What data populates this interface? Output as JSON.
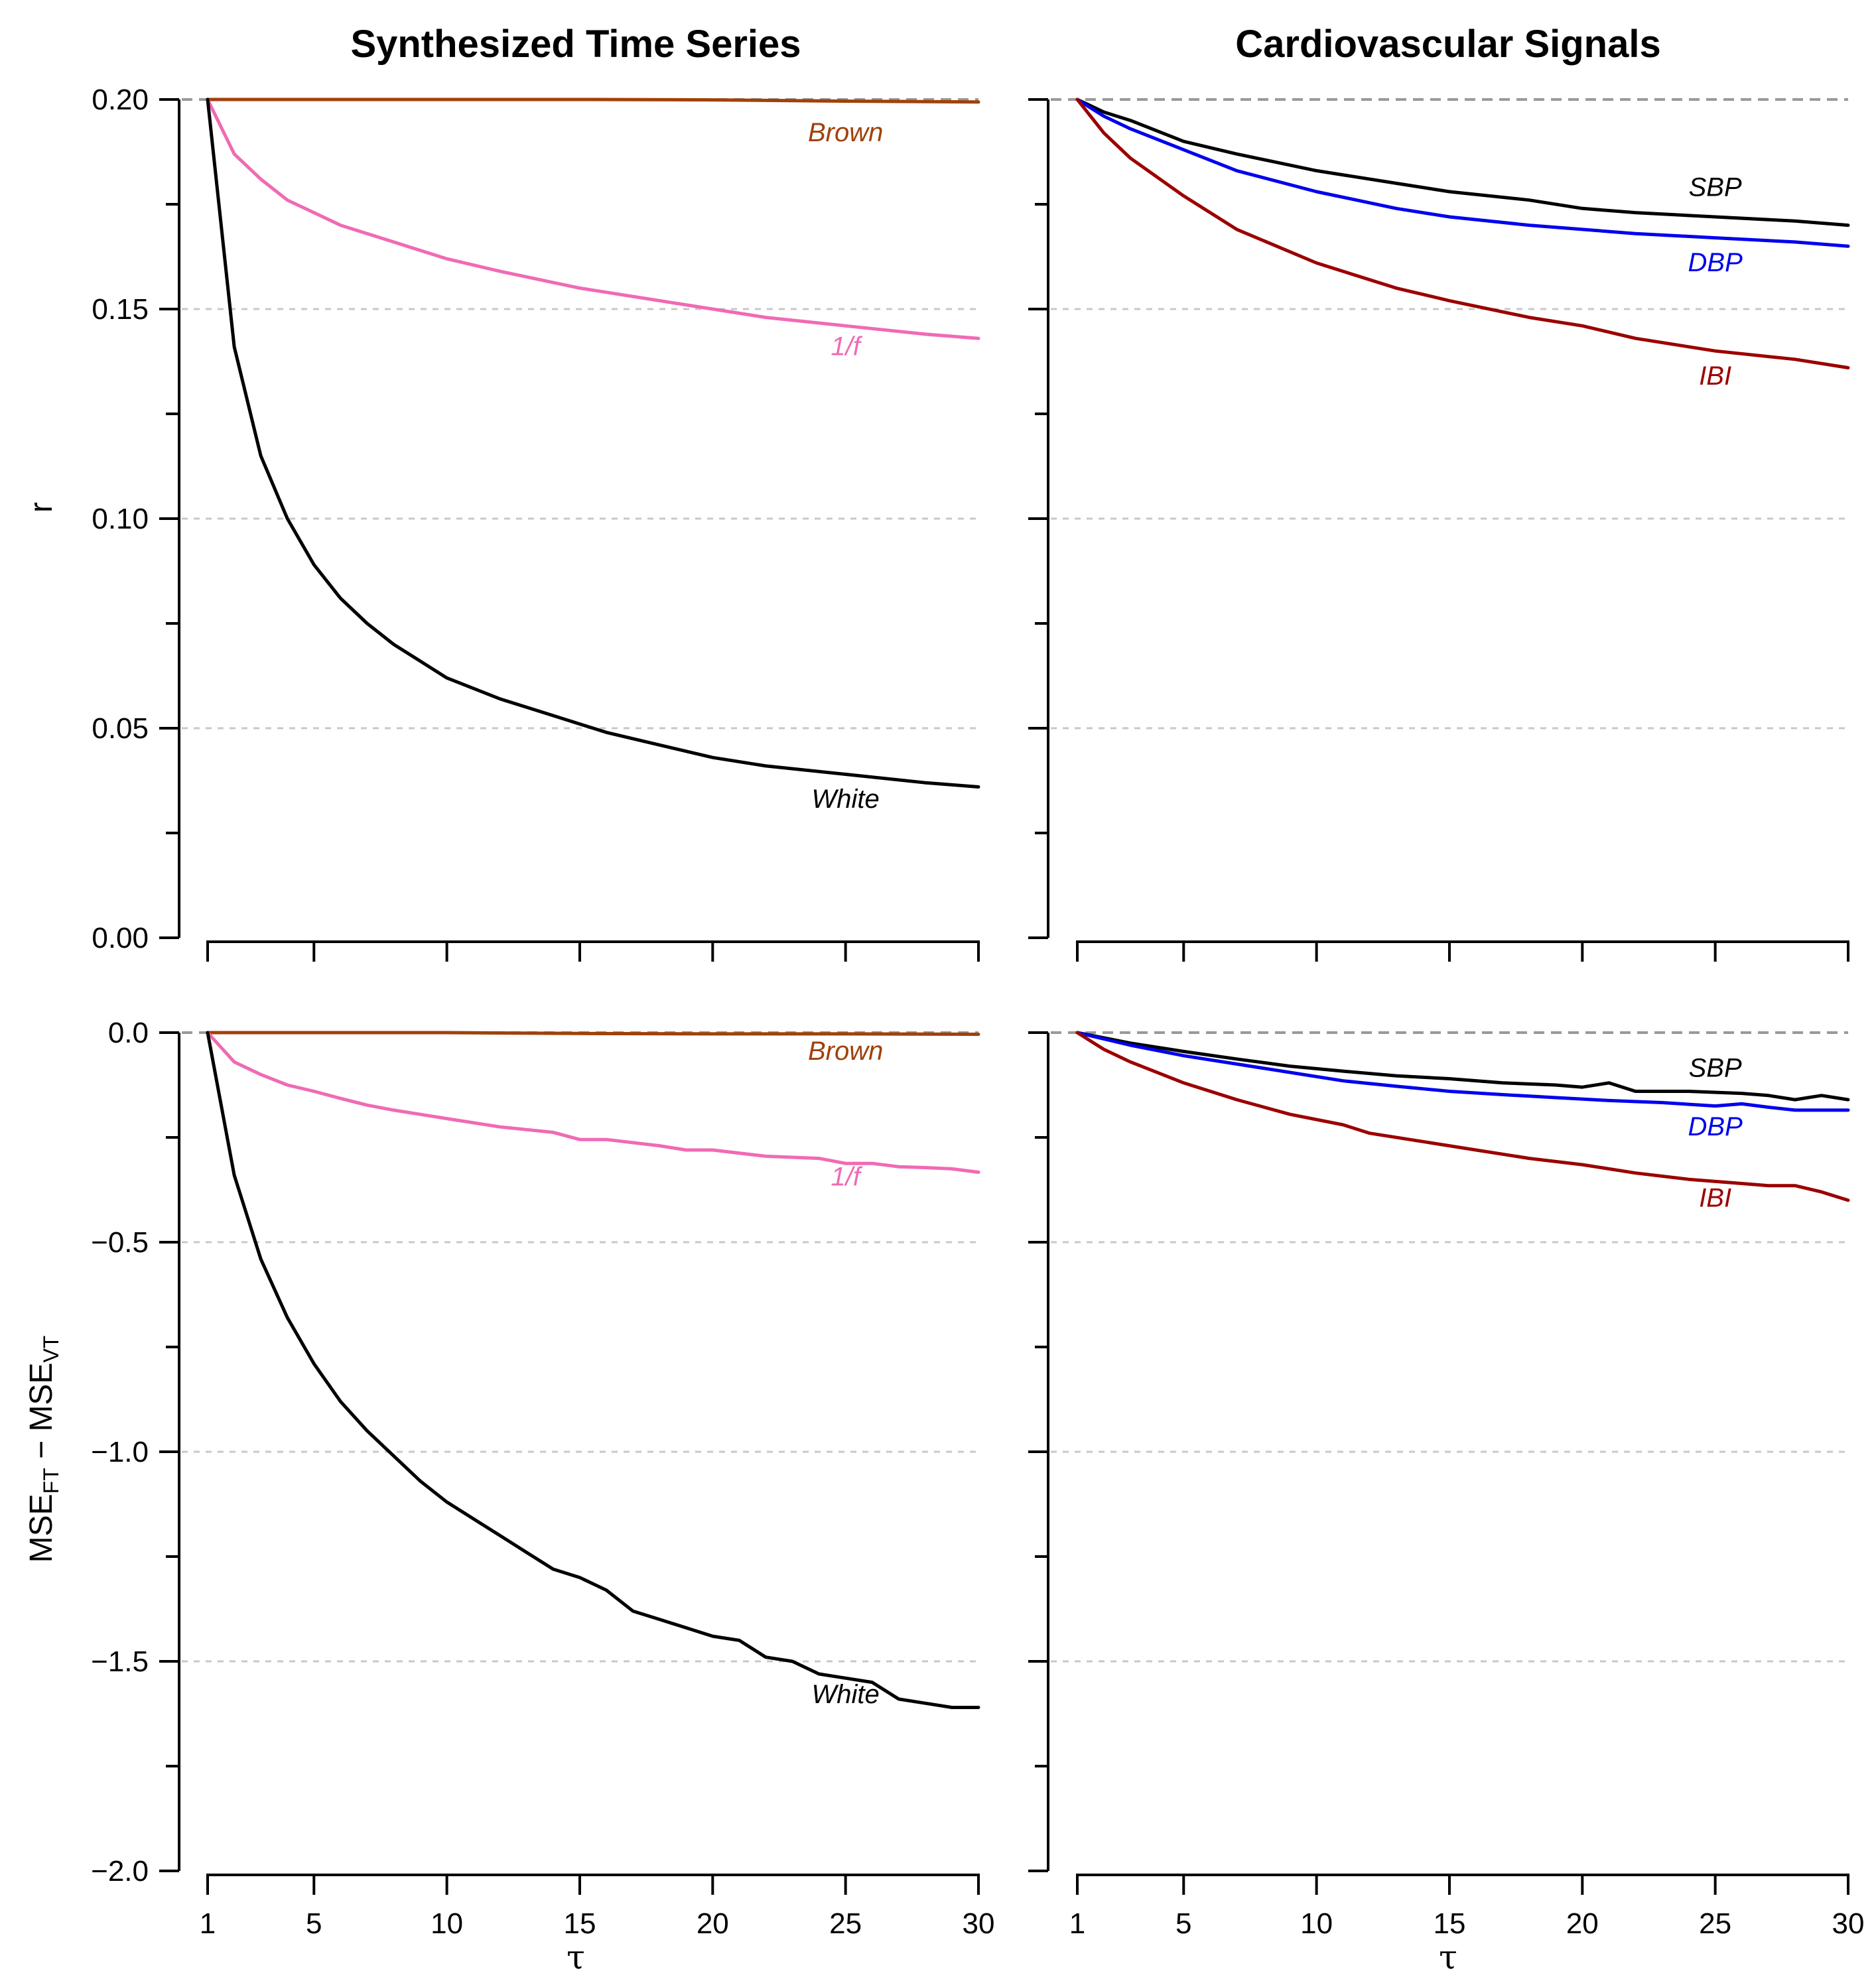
{
  "titles": {
    "left": "Synthesized Time Series",
    "right": "Cardiovascular Signals"
  },
  "axis_labels": {
    "top_y": "r",
    "bottom_y_parts": [
      "MSE",
      "FT",
      " − MSE",
      "VT"
    ],
    "x": "τ"
  },
  "x_ticks": [
    1,
    5,
    10,
    15,
    20,
    25,
    30
  ],
  "top_y_tick_labels": [
    "0.20",
    "0.15",
    "0.10",
    "0.05",
    "0.00"
  ],
  "bottom_y_tick_labels": [
    "0.0",
    "−0.5",
    "−1.0",
    "−1.5",
    "−2.0"
  ],
  "colors": {
    "Brown": "#a0410a",
    "1/f": "#f06ab4",
    "White": "#000000",
    "SBP": "#000000",
    "DBP": "#0000ee",
    "IBI": "#9b0000",
    "grid": "#c8c8c8",
    "reference": "#999999"
  },
  "chart_data": [
    {
      "id": "top-left",
      "type": "line",
      "title": "Synthesized Time Series",
      "xlabel": "τ",
      "ylabel": "r",
      "xlim": [
        1,
        30
      ],
      "ylim": [
        0,
        0.2
      ],
      "y_ticks": [
        0,
        0.05,
        0.1,
        0.15,
        0.2
      ],
      "reference_line": 0.2,
      "series": [
        {
          "name": "Brown",
          "x": [
            1,
            5,
            10,
            15,
            20,
            25,
            30
          ],
          "values": [
            0.2,
            0.2,
            0.2,
            0.2,
            0.1999,
            0.1996,
            0.1994
          ],
          "label_at": [
            25,
            0.19
          ]
        },
        {
          "name": "1/f",
          "x": [
            1,
            2,
            3,
            4,
            5,
            6,
            7,
            8,
            10,
            12,
            15,
            18,
            20,
            22,
            25,
            28,
            30
          ],
          "values": [
            0.2,
            0.187,
            0.181,
            0.176,
            0.173,
            0.17,
            0.168,
            0.166,
            0.162,
            0.159,
            0.155,
            0.152,
            0.15,
            0.148,
            0.146,
            0.144,
            0.143
          ],
          "label_at": [
            25,
            0.139
          ]
        },
        {
          "name": "White",
          "x": [
            1,
            2,
            3,
            4,
            5,
            6,
            7,
            8,
            9,
            10,
            12,
            14,
            16,
            18,
            20,
            22,
            25,
            28,
            30
          ],
          "values": [
            0.2,
            0.141,
            0.115,
            0.1,
            0.089,
            0.081,
            0.075,
            0.07,
            0.066,
            0.062,
            0.057,
            0.053,
            0.049,
            0.046,
            0.043,
            0.041,
            0.039,
            0.037,
            0.036
          ],
          "label_at": [
            25,
            0.031
          ]
        }
      ]
    },
    {
      "id": "top-right",
      "type": "line",
      "title": "Cardiovascular Signals",
      "xlabel": "τ",
      "ylabel": "r",
      "xlim": [
        1,
        30
      ],
      "ylim": [
        0,
        0.2
      ],
      "y_ticks": [
        0,
        0.05,
        0.1,
        0.15,
        0.2
      ],
      "reference_line": 0.2,
      "series": [
        {
          "name": "SBP",
          "x": [
            1,
            2,
            3,
            5,
            7,
            10,
            13,
            15,
            18,
            20,
            22,
            25,
            28,
            30
          ],
          "values": [
            0.2,
            0.197,
            0.195,
            0.19,
            0.187,
            0.183,
            0.18,
            0.178,
            0.176,
            0.174,
            0.173,
            0.172,
            0.171,
            0.17
          ],
          "label_at": [
            25,
            0.177
          ]
        },
        {
          "name": "DBP",
          "x": [
            1,
            2,
            3,
            5,
            7,
            10,
            13,
            15,
            18,
            20,
            22,
            25,
            28,
            30
          ],
          "values": [
            0.2,
            0.196,
            0.193,
            0.188,
            0.183,
            0.178,
            0.174,
            0.172,
            0.17,
            0.169,
            0.168,
            0.167,
            0.166,
            0.165
          ],
          "label_at": [
            25,
            0.159
          ]
        },
        {
          "name": "IBI",
          "x": [
            1,
            2,
            3,
            5,
            7,
            10,
            13,
            15,
            18,
            20,
            22,
            25,
            28,
            30
          ],
          "values": [
            0.2,
            0.192,
            0.186,
            0.177,
            0.169,
            0.161,
            0.155,
            0.152,
            0.148,
            0.146,
            0.143,
            0.14,
            0.138,
            0.136
          ],
          "label_at": [
            25,
            0.132
          ]
        }
      ]
    },
    {
      "id": "bottom-left",
      "type": "line",
      "xlabel": "τ",
      "ylabel": "MSE_FT − MSE_VT",
      "xlim": [
        1,
        30
      ],
      "ylim": [
        -2,
        0
      ],
      "y_ticks": [
        -2,
        -1.5,
        -1,
        -0.5,
        0
      ],
      "reference_line": 0,
      "series": [
        {
          "name": "Brown",
          "x": [
            1,
            5,
            10,
            15,
            20,
            25,
            30
          ],
          "values": [
            0,
            0,
            0,
            -0.002,
            -0.003,
            -0.003,
            -0.004
          ],
          "label_at": [
            25,
            -0.065
          ]
        },
        {
          "name": "1/f",
          "x": [
            1,
            2,
            3,
            4,
            5,
            6,
            7,
            8,
            10,
            12,
            14,
            15,
            16,
            18,
            19,
            20,
            22,
            24,
            25,
            26,
            27,
            28,
            29,
            30
          ],
          "values": [
            0,
            -0.07,
            -0.1,
            -0.125,
            -0.14,
            -0.157,
            -0.173,
            -0.185,
            -0.205,
            -0.225,
            -0.238,
            -0.255,
            -0.255,
            -0.27,
            -0.28,
            -0.28,
            -0.295,
            -0.3,
            -0.312,
            -0.312,
            -0.32,
            -0.322,
            -0.325,
            -0.333
          ],
          "label_at": [
            25,
            -0.365
          ]
        },
        {
          "name": "White",
          "x": [
            1,
            2,
            3,
            4,
            5,
            6,
            7,
            8,
            9,
            10,
            11,
            12,
            13,
            14,
            15,
            16,
            17,
            18,
            19,
            20,
            21,
            22,
            23,
            24,
            25,
            26,
            27,
            28,
            29,
            30
          ],
          "values": [
            0,
            -0.34,
            -0.54,
            -0.68,
            -0.79,
            -0.88,
            -0.95,
            -1.01,
            -1.07,
            -1.12,
            -1.16,
            -1.2,
            -1.24,
            -1.28,
            -1.3,
            -1.33,
            -1.38,
            -1.4,
            -1.42,
            -1.44,
            -1.45,
            -1.49,
            -1.5,
            -1.53,
            -1.54,
            -1.55,
            -1.59,
            -1.6,
            -1.61,
            -1.61
          ],
          "label_at": [
            25,
            -1.6
          ]
        }
      ]
    },
    {
      "id": "bottom-right",
      "type": "line",
      "xlabel": "τ",
      "ylabel": "MSE_FT − MSE_VT",
      "xlim": [
        1,
        30
      ],
      "ylim": [
        -2,
        0
      ],
      "y_ticks": [
        -2,
        -1.5,
        -1,
        -0.5,
        0
      ],
      "reference_line": 0,
      "series": [
        {
          "name": "SBP",
          "x": [
            1,
            3,
            5,
            7,
            9,
            11,
            13,
            15,
            17,
            19,
            20,
            21,
            22,
            24,
            26,
            27,
            28,
            29,
            30
          ],
          "values": [
            0,
            -0.025,
            -0.045,
            -0.063,
            -0.08,
            -0.092,
            -0.103,
            -0.11,
            -0.12,
            -0.125,
            -0.13,
            -0.12,
            -0.14,
            -0.14,
            -0.145,
            -0.15,
            -0.16,
            -0.15,
            -0.16
          ],
          "label_at": [
            25,
            -0.105
          ]
        },
        {
          "name": "DBP",
          "x": [
            1,
            3,
            5,
            7,
            9,
            11,
            13,
            15,
            17,
            19,
            21,
            23,
            25,
            26,
            27,
            28,
            30
          ],
          "values": [
            0,
            -0.03,
            -0.055,
            -0.075,
            -0.095,
            -0.115,
            -0.128,
            -0.14,
            -0.148,
            -0.155,
            -0.162,
            -0.167,
            -0.175,
            -0.17,
            -0.178,
            -0.185,
            -0.185
          ],
          "label_at": [
            25,
            -0.245
          ]
        },
        {
          "name": "IBI",
          "x": [
            1,
            2,
            3,
            5,
            7,
            9,
            11,
            12,
            14,
            16,
            18,
            20,
            22,
            24,
            25,
            26,
            27,
            28,
            29,
            30
          ],
          "values": [
            0,
            -0.04,
            -0.07,
            -0.12,
            -0.16,
            -0.195,
            -0.22,
            -0.24,
            -0.26,
            -0.28,
            -0.3,
            -0.315,
            -0.335,
            -0.35,
            -0.355,
            -0.36,
            -0.365,
            -0.365,
            -0.38,
            -0.4
          ],
          "label_at": [
            25,
            -0.415
          ]
        }
      ]
    }
  ]
}
